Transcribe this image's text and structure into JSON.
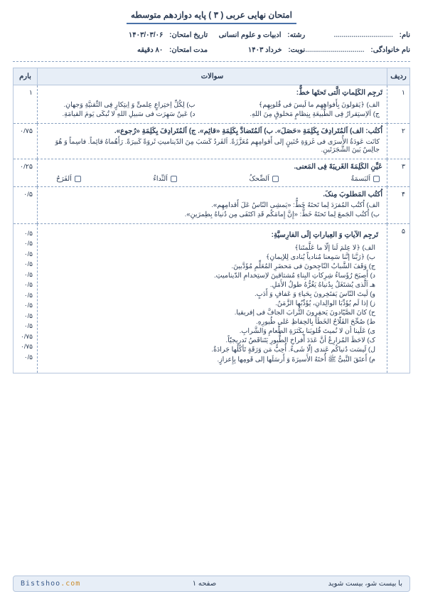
{
  "header": {
    "title": "امتحان نهایی عربی ( ۳ ) پایه دوازدهم متوسطه"
  },
  "info": {
    "name_lbl": "نام:",
    "name_val": "..............................",
    "reshte_lbl": "رشته:",
    "reshte_val": "ادبیات و علوم انسانی",
    "date_lbl": "تاریخ امتحان:",
    "date_val": "۱۴۰۳/۰۳/۰۶",
    "family_lbl": "نام خانوادگی:",
    "family_val": "..............................",
    "nobat_lbl": "نوبت:",
    "nobat_val": "خرداد ۱۴۰۳",
    "dur_lbl": "مدت امتحان:",
    "dur_val": "۸۰ دقیقه"
  },
  "table": {
    "head_row": "ردیف",
    "head_q": "سوالات",
    "head_mark": "بارم"
  },
  "q1": {
    "num": "۱",
    "title": "تَرجِم الکَلِماتِ الَّتی تَحتَها خطٌّ:",
    "a": "الف) ﴿یَقولونَ بِأَفواهِهِم ما لَیسَ فی قُلوبِهِم﴾",
    "b": "ب) لِکُلِّ اِختِراعٍ عِلمیٍّ وَ اِبتِکارٍ فِی التِّقنیَّةِ وَجهانِ.",
    "c": "ج) اَلاِستِقرارُ فِی الطَّبیعَةِ بِنِظامٍ مَخلوقٍ مِنَ اللهِ.",
    "d": "د) عَینٌ سَهِرَت فی سَبیلِ اللهِ لا تُبکَی یَومَ القیامَةِ.",
    "mark": "۱"
  },
  "q2": {
    "num": "۲",
    "title": "اُکتُب: الف) اَلمُتَرادِفَ بِکَلِمَةِ «حَصَلَ». ب) اَلمُتَضادَّ بِکَلِمَةِ «قائِم». ج) اَلمُتَرادِفَ بِکَلِمَةِ «رُجوع».",
    "line": "کانَت عَودَةُ الأُسرَی فی غَزوَةِ حُنَینٍ إلی أَقوامِهِم مُعَزَّزَةً. اَلفَردُ کَسَبَ مِنَ الدّینامیتِ ثَروَةً کَبیرَةً. رَأَهُماهُ قائِماً. فاسِماً وَ هُوَ جالِسٌ بَینَ الشَّجَرَتَینِ.",
    "mark": "۰/۷۵"
  },
  "q3": {
    "num": "۳",
    "title": "عَیِّنِ الکَلِمَةَ الغَریبَةَ فِی المَعنی.",
    "opts": {
      "a": "اَلبَسمَةُ",
      "b": "اَلضِّحکُ",
      "c": "اَلنِّداءُ",
      "d": "اَلفَرَحُ"
    },
    "mark": "۰/۲۵"
  },
  "q4": {
    "num": "۴",
    "title": "اُکتُب المَطلوبَ مِنکَ.",
    "a": "الف) اُکتُب المُفرَدَ لِما تَحتَهُ خَطٌّ: «یَمشِی النّاسُ عَلَ أَقدامِهِم».",
    "b": "ب) اُکتُب الجَمعَ لِما تَحتَهُ خَطٌّ: «إِنَّ إِمامَکُم قَدِ اکتَفَی مِن دُنیاهُ بِطِمرَینِ».",
    "mark": "۰/۵"
  },
  "q5": {
    "num": "۵",
    "title": "تَرجِم الآیاتِ وَ العِباراتِ إلَی الفارِسیَّةِ:",
    "items": [
      {
        "txt": "الف) ﴿لا عِلمَ لَنا إلّا ما عَلَّمتَنا﴾",
        "mk": "۰/۵"
      },
      {
        "txt": "ب) ﴿رَبَّنا إنَّنا سَمِعنا مُنادیاً یُنادی لِلإیمانِ﴾",
        "mk": "۰/۵"
      },
      {
        "txt": "ج) وَقَفَ الشَّبابُ النّاجِحونَ فی مَحضَرِ المُعَلِّمِ مُؤَدَّبینَ.",
        "mk": "۰/۵"
      },
      {
        "txt": "د) أَصبَحَ رُؤَساءُ شِرِکاتِ البِناءِ مُشتاقینَ لاِستِخدامِ الدّینامیتِ.",
        "mk": "۰/۵"
      },
      {
        "txt": "هـ اَلَّذی یُشتَغَلُ بِدُنیاهُ یَغُرُّهُ طولُ الأَمَلِ.",
        "mk": "۰/۵"
      },
      {
        "txt": "و) لَیتَ النّاسَ یَفتَخِرونَ بِحَیاءِ وَ عَفافٍ وَ أَدَبٍ.",
        "mk": "۰/۵"
      },
      {
        "txt": "ز) إذا لَم یُؤَدِّبَا الوالِدانِ، یُؤَدِّبُها الزَّمَنُ.",
        "mk": "۰/۵"
      },
      {
        "txt": "ح) کانَ الصَّیّادونَ یَحفِرونَ التُّرابَ الجافَّ فی إفریقیا.",
        "mk": "۰/۵"
      },
      {
        "txt": "ط) صُحِّحَ الفَلّاحُ الخَطَأَ بِالحِفاظِ عَلی طُیورِهِ.",
        "mk": "۰/۵"
      },
      {
        "txt": "ی) عَلَینا أن لا نُمیتَ قُلوبَنا بِکَثرَةِ الطَّعامِ وَالشَّرابِ.",
        "mk": "۰/۵"
      },
      {
        "txt": "ک) لاحَظَ المُزارِعُ أنَّ عَدَدَ أَفراخِ الطُّیورِ یَتَناقَصُ تَدریجیّاً.",
        "mk": "۰/۷۵"
      },
      {
        "txt": "ل) لَیسَت دُنیاکُم عَندی إلّا شَیءً. أُحِبُّ مَن وَرَقَةٍ تَأکُلُها جَرادَةٌ.",
        "mk": "۰/۷۵"
      },
      {
        "txt": "م) أَعتَقَ النَّبیُّ ﷺ أُختَهُ الأَسیرَةَ وَ أَرسَلَها إلی قَومِها بِإِعزازٍ.",
        "mk": "۰/۵"
      }
    ]
  },
  "footer": {
    "right": "با بیست شو، بیست شوید",
    "center": "صفحه ۱",
    "brand1": "Bistshoo",
    "brand2": ".com"
  }
}
